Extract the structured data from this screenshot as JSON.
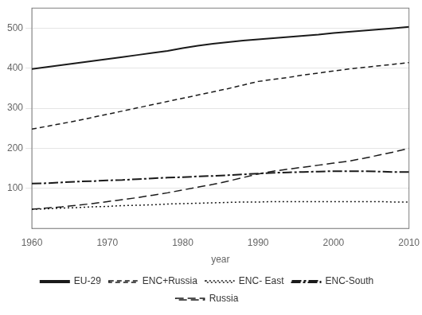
{
  "chart_data": {
    "type": "line",
    "x": [
      1960,
      1962,
      1964,
      1966,
      1968,
      1970,
      1972,
      1974,
      1976,
      1978,
      1980,
      1982,
      1984,
      1986,
      1988,
      1990,
      1992,
      1994,
      1996,
      1998,
      2000,
      2002,
      2004,
      2006,
      2008,
      2010
    ],
    "series": [
      {
        "name": "EU-29",
        "color": "#1a1a1a",
        "line_style": "solid",
        "values": [
          398,
          403,
          408,
          413,
          418,
          423,
          428,
          433,
          438,
          443,
          450,
          456,
          461,
          465,
          469,
          472,
          475,
          478,
          481,
          484,
          488,
          491,
          494,
          497,
          500,
          503
        ]
      },
      {
        "name": "ENC+Russia",
        "color": "#1a1a1a",
        "line_style": "dashed",
        "values": [
          248,
          255,
          262,
          269,
          277,
          285,
          293,
          301,
          309,
          317,
          325,
          333,
          341,
          349,
          358,
          367,
          372,
          377,
          383,
          388,
          393,
          398,
          402,
          406,
          410,
          414
        ]
      },
      {
        "name": "ENC- East",
        "color": "#1a1a1a",
        "line_style": "dotted",
        "values": [
          48,
          49,
          51,
          52,
          54,
          55,
          57,
          58,
          59,
          61,
          62,
          63,
          64,
          65,
          66,
          66,
          67,
          67,
          67,
          67,
          67,
          67,
          67,
          67,
          66,
          66
        ]
      },
      {
        "name": "ENC-South",
        "color": "#1a1a1a",
        "line_style": "dashdot",
        "values": [
          112,
          113,
          115,
          117,
          118,
          120,
          121,
          123,
          125,
          127,
          128,
          130,
          131,
          133,
          135,
          137,
          139,
          140,
          141,
          142,
          143,
          143,
          143,
          142,
          141,
          141
        ]
      },
      {
        "name": "Russia",
        "color": "#1a1a1a",
        "line_style": "longdash",
        "values": [
          48,
          51,
          54,
          58,
          62,
          67,
          72,
          77,
          83,
          89,
          96,
          103,
          110,
          118,
          127,
          136,
          143,
          148,
          153,
          158,
          163,
          168,
          175,
          183,
          191,
          200
        ]
      }
    ],
    "xlabel": "year",
    "xlim": [
      1960,
      2010
    ],
    "ylim": [
      0,
      550
    ],
    "xticks": [
      1960,
      1970,
      1980,
      1990,
      2000,
      2010
    ],
    "yticks": [
      100,
      200,
      300,
      400,
      500
    ],
    "grid": "y",
    "legend": "bottom"
  }
}
